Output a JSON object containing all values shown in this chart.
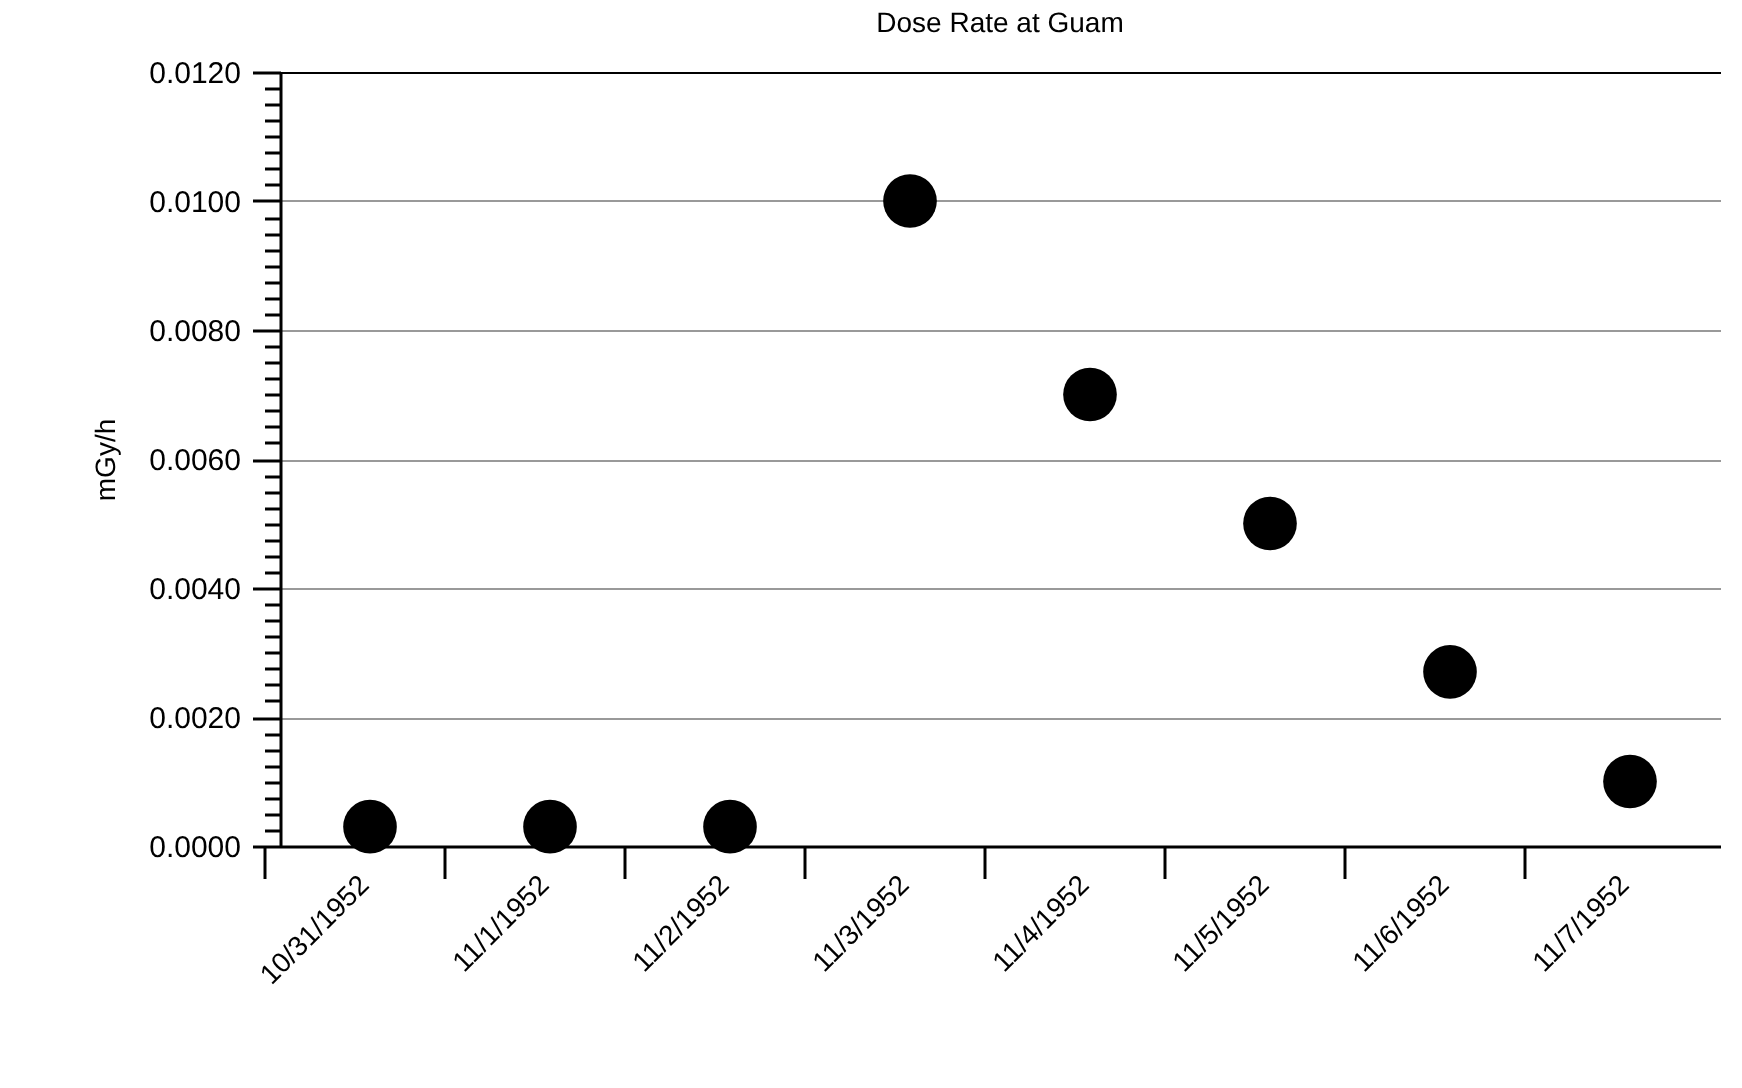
{
  "chart_data": {
    "type": "scatter",
    "title": "Dose Rate at Guam",
    "ylabel": "mGy/h",
    "categories": [
      "10/31/1952",
      "11/1/1952",
      "11/2/1952",
      "11/3/1952",
      "11/4/1952",
      "11/5/1952",
      "11/6/1952",
      "11/7/1952"
    ],
    "series": [
      {
        "color": "#000000",
        "values": [
          0.0003,
          0.0003,
          0.0003,
          0.01,
          0.007,
          0.005,
          0.0027,
          0.001
        ]
      }
    ],
    "ylim": [
      0,
      0.012
    ],
    "yticks": [
      {
        "value": 0,
        "label": "0.0000"
      },
      {
        "value": 0.00025,
        "label": null
      },
      {
        "value": 0.0005,
        "label": null
      },
      {
        "value": 0.00075,
        "label": null
      },
      {
        "value": 0.001,
        "label": null
      },
      {
        "value": 0.00125,
        "label": null
      },
      {
        "value": 0.0015,
        "label": null
      },
      {
        "value": 0.00175,
        "label": null
      },
      {
        "value": 0.002,
        "label": "0.0020"
      },
      {
        "value": 0.00225,
        "label": null
      },
      {
        "value": 0.0025,
        "label": null
      },
      {
        "value": 0.00275,
        "label": null
      },
      {
        "value": 0.003,
        "label": null
      },
      {
        "value": 0.00325,
        "label": null
      },
      {
        "value": 0.0035,
        "label": null
      },
      {
        "value": 0.00375,
        "label": null
      },
      {
        "value": 0.004,
        "label": "0.0040"
      },
      {
        "value": 0.00425,
        "label": null
      },
      {
        "value": 0.0045,
        "label": null
      },
      {
        "value": 0.00475,
        "label": null
      },
      {
        "value": 0.005,
        "label": null
      },
      {
        "value": 0.00525,
        "label": null
      },
      {
        "value": 0.0055,
        "label": null
      },
      {
        "value": 0.00575,
        "label": null
      },
      {
        "value": 0.006,
        "label": "0.0060"
      },
      {
        "value": 0.00625,
        "label": null
      },
      {
        "value": 0.0065,
        "label": null
      },
      {
        "value": 0.00675,
        "label": null
      },
      {
        "value": 0.007,
        "label": null
      },
      {
        "value": 0.00725,
        "label": null
      },
      {
        "value": 0.0075,
        "label": null
      },
      {
        "value": 0.00775,
        "label": null
      },
      {
        "value": 0.008,
        "label": "0.0080"
      },
      {
        "value": 0.00825,
        "label": null
      },
      {
        "value": 0.0085,
        "label": null
      },
      {
        "value": 0.00875,
        "label": null
      },
      {
        "value": 0.009,
        "label": null
      },
      {
        "value": 0.00925,
        "label": null
      },
      {
        "value": 0.0095,
        "label": null
      },
      {
        "value": 0.00975,
        "label": null
      },
      {
        "value": 0.01,
        "label": "0.0100"
      },
      {
        "value": 0.01025,
        "label": null
      },
      {
        "value": 0.0105,
        "label": null
      },
      {
        "value": 0.01075,
        "label": null
      },
      {
        "value": 0.011,
        "label": null
      },
      {
        "value": 0.01125,
        "label": null
      },
      {
        "value": 0.0115,
        "label": null
      },
      {
        "value": 0.01175,
        "label": null
      },
      {
        "value": 0.012,
        "label": "0.0120"
      }
    ],
    "grid": "y",
    "marker": "circle",
    "legend": false
  }
}
